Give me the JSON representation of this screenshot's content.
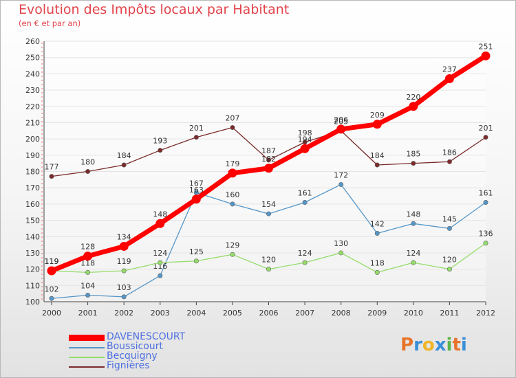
{
  "title": "Evolution des Impôts locaux par Habitant",
  "subtitle": "(en € et par an)",
  "logo": {
    "text": "Proxiti",
    "colors": [
      "#e8742c",
      "#3a8fd8",
      "#f0b428",
      "#3a8fd8",
      "#5bb34a",
      "#e8742c",
      "#3a8fd8"
    ]
  },
  "chart_data": {
    "type": "line",
    "x": [
      "2000",
      "2001",
      "2002",
      "2003",
      "2004",
      "2005",
      "2006",
      "2007",
      "2008",
      "2009",
      "2010",
      "2011",
      "2012"
    ],
    "ylim": [
      100,
      260
    ],
    "yticks": [
      100,
      110,
      120,
      130,
      140,
      150,
      160,
      170,
      180,
      190,
      200,
      210,
      220,
      230,
      240,
      250,
      260
    ],
    "grid": "horizontal",
    "legend": "bottom-left",
    "series": [
      {
        "name": "Fignières",
        "color": "#7a2a2a",
        "values": [
          177,
          180,
          184,
          193,
          201,
          207,
          187,
          198,
          205,
          184,
          185,
          186,
          201
        ]
      },
      {
        "name": "Boussicourt",
        "color": "#5596c8",
        "values": [
          102,
          104,
          103,
          116,
          167,
          160,
          154,
          161,
          172,
          142,
          148,
          145,
          161
        ]
      },
      {
        "name": "Becquigny",
        "color": "#94dc6a",
        "values": [
          119,
          118,
          119,
          124,
          125,
          129,
          120,
          124,
          130,
          118,
          124,
          120,
          136
        ]
      },
      {
        "name": "DAVENESCOURT",
        "color": "#ff0000",
        "values": [
          119,
          128,
          134,
          148,
          163,
          179,
          182,
          194,
          206,
          209,
          220,
          237,
          251
        ]
      }
    ]
  }
}
